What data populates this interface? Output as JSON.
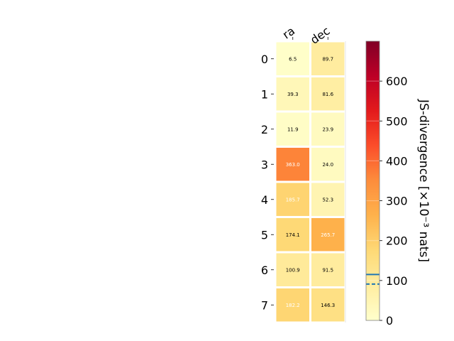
{
  "chart_data": {
    "type": "heatmap",
    "columns": [
      "ra",
      "dec"
    ],
    "rows": [
      "0",
      "1",
      "2",
      "3",
      "4",
      "5",
      "6",
      "7"
    ],
    "values": [
      [
        6.5,
        89.7
      ],
      [
        39.3,
        81.6
      ],
      [
        11.9,
        23.9
      ],
      [
        363.0,
        24.0
      ],
      [
        185.7,
        52.3
      ],
      [
        174.1,
        265.7
      ],
      [
        100.9,
        91.5
      ],
      [
        182.2,
        146.3
      ]
    ],
    "value_labels": [
      [
        "6.5",
        "89.7"
      ],
      [
        "39.3",
        "81.6"
      ],
      [
        "11.9",
        "23.9"
      ],
      [
        "363.0",
        "24.0"
      ],
      [
        "185.7",
        "52.3"
      ],
      [
        "174.1",
        "265.7"
      ],
      [
        "100.9",
        "91.5"
      ],
      [
        "182.2",
        "146.3"
      ]
    ],
    "label_colors": [
      [
        "#000000",
        "#000000"
      ],
      [
        "#000000",
        "#000000"
      ],
      [
        "#000000",
        "#000000"
      ],
      [
        "#ffffff",
        "#000000"
      ],
      [
        "#ffffff",
        "#000000"
      ],
      [
        "#000000",
        "#ffffff"
      ],
      [
        "#000000",
        "#000000"
      ],
      [
        "#ffffff",
        "#000000"
      ]
    ],
    "colormap": "YlOrRd",
    "colorbar": {
      "label": "JS-divergence [×10⁻³ nats]",
      "range": [
        0,
        700
      ],
      "ticks": [
        0,
        100,
        200,
        300,
        400,
        500,
        600
      ],
      "tick_labels": [
        "0",
        "100",
        "200",
        "300",
        "400",
        "500",
        "600"
      ],
      "solid_line": 115,
      "dashed_line": 91,
      "line_color": "#1f77b4"
    },
    "grid": false
  }
}
